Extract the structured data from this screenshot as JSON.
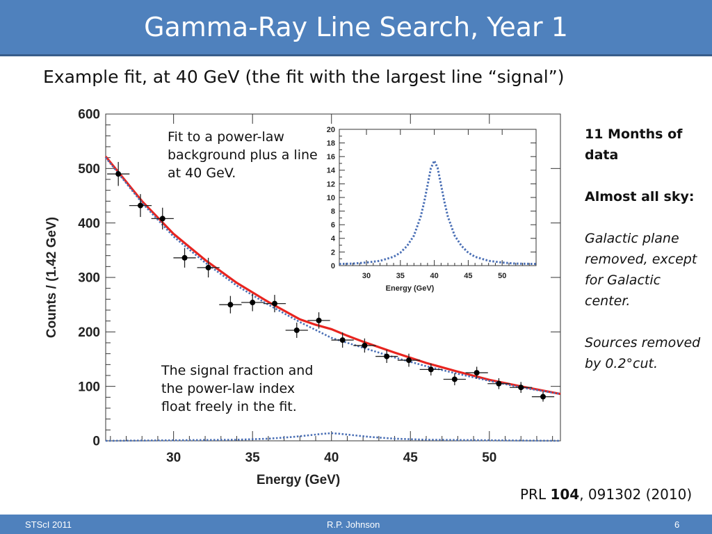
{
  "slide": {
    "title": "Gamma-Ray Line Search, Year 1",
    "subtitle": "Example fit, at 40 GeV (the fit with the largest line “signal”)",
    "note_top": [
      "Fit to a power-law",
      "background plus a line",
      "at 40 GeV."
    ],
    "note_bottom": [
      "The signal fraction and",
      "the power-law index",
      "float freely in the fit."
    ],
    "side": {
      "p1": "11 Months of data",
      "p2": "Almost all sky:",
      "p3": "Galactic plane removed, except for Galactic center.",
      "p4": "Sources removed by 0.2°cut."
    },
    "reference": {
      "prefix": "PRL ",
      "volume": "104",
      "rest": ", 091302 (2010)"
    },
    "footer": {
      "left": "STScI 2011",
      "center": "R.P. Johnson",
      "right": "6"
    }
  },
  "colors": {
    "header": "#4f81bd",
    "fit_line": "#e8241f",
    "background_line": "#4a6fb5",
    "points": "#000000"
  },
  "chart_data": [
    {
      "type": "scatter",
      "xlabel": "Energy (GeV)",
      "ylabel": "Counts / (1.42 GeV)",
      "xlim": [
        25.7,
        54.5
      ],
      "ylim": [
        0,
        600
      ],
      "xticks": [
        30,
        35,
        40,
        45,
        50
      ],
      "yticks": [
        0,
        100,
        200,
        300,
        400,
        500,
        600
      ],
      "x_err": 0.71,
      "points": [
        {
          "x": 26.5,
          "y": 490,
          "yerr": 22
        },
        {
          "x": 27.9,
          "y": 432,
          "yerr": 21
        },
        {
          "x": 29.3,
          "y": 408,
          "yerr": 20
        },
        {
          "x": 30.7,
          "y": 336,
          "yerr": 18
        },
        {
          "x": 32.2,
          "y": 318,
          "yerr": 18
        },
        {
          "x": 33.6,
          "y": 250,
          "yerr": 16
        },
        {
          "x": 35.0,
          "y": 254,
          "yerr": 16
        },
        {
          "x": 36.4,
          "y": 252,
          "yerr": 16
        },
        {
          "x": 37.8,
          "y": 203,
          "yerr": 14
        },
        {
          "x": 39.2,
          "y": 221,
          "yerr": 15
        },
        {
          "x": 40.7,
          "y": 185,
          "yerr": 14
        },
        {
          "x": 42.1,
          "y": 175,
          "yerr": 13
        },
        {
          "x": 43.5,
          "y": 155,
          "yerr": 12
        },
        {
          "x": 44.9,
          "y": 148,
          "yerr": 12
        },
        {
          "x": 46.3,
          "y": 131,
          "yerr": 11
        },
        {
          "x": 47.8,
          "y": 113,
          "yerr": 11
        },
        {
          "x": 49.2,
          "y": 125,
          "yerr": 11
        },
        {
          "x": 50.6,
          "y": 105,
          "yerr": 10
        },
        {
          "x": 52.0,
          "y": 98,
          "yerr": 10
        },
        {
          "x": 53.4,
          "y": 81,
          "yerr": 9
        }
      ],
      "series": [
        {
          "style": "solid-red",
          "x": [
            25.7,
            28,
            30,
            32,
            34,
            36,
            38,
            39,
            40,
            41,
            42,
            44,
            46,
            48,
            50,
            52,
            54.5
          ],
          "values": [
            522,
            440,
            380,
            332,
            290,
            255,
            223,
            213,
            205,
            193,
            182,
            162,
            143,
            127,
            112,
            100,
            86
          ]
        },
        {
          "style": "dotted-blue",
          "x": [
            25.7,
            28,
            30,
            32,
            34,
            36,
            38,
            40,
            42,
            44,
            46,
            48,
            50,
            52,
            54.5
          ],
          "values": [
            520,
            437,
            375,
            327,
            285,
            250,
            218,
            189,
            171,
            153,
            137,
            123,
            110,
            98,
            86
          ]
        },
        {
          "style": "dotted-blue",
          "x": [
            25.7,
            30,
            34,
            36,
            37.5,
            38.5,
            39.5,
            40,
            40.5,
            41.5,
            42.5,
            44,
            46,
            50,
            54.5
          ],
          "values": [
            0,
            1,
            2,
            4,
            7,
            10,
            13,
            14,
            13,
            10,
            7,
            4,
            2,
            1,
            0
          ]
        }
      ]
    },
    {
      "type": "line",
      "xlabel": "Energy (GeV)",
      "xlim": [
        26,
        55
      ],
      "ylim": [
        0,
        20
      ],
      "xticks": [
        30,
        35,
        40,
        45,
        50
      ],
      "yticks": [
        0,
        2,
        4,
        6,
        8,
        10,
        12,
        14,
        16,
        18,
        20
      ],
      "series": [
        {
          "style": "dotted-blue",
          "x": [
            26,
            28,
            30,
            32,
            34,
            35,
            36,
            37,
            38,
            38.5,
            39,
            39.5,
            40,
            40.5,
            41,
            41.5,
            42,
            43,
            44,
            45,
            46,
            48,
            50,
            52,
            55
          ],
          "values": [
            0.25,
            0.3,
            0.45,
            0.7,
            1.3,
            1.9,
            2.9,
            4.4,
            7.2,
            9.3,
            11.8,
            14.3,
            15.4,
            14.3,
            11.8,
            9.3,
            7.2,
            4.4,
            2.9,
            1.9,
            1.3,
            0.7,
            0.45,
            0.3,
            0.25
          ]
        }
      ]
    }
  ]
}
